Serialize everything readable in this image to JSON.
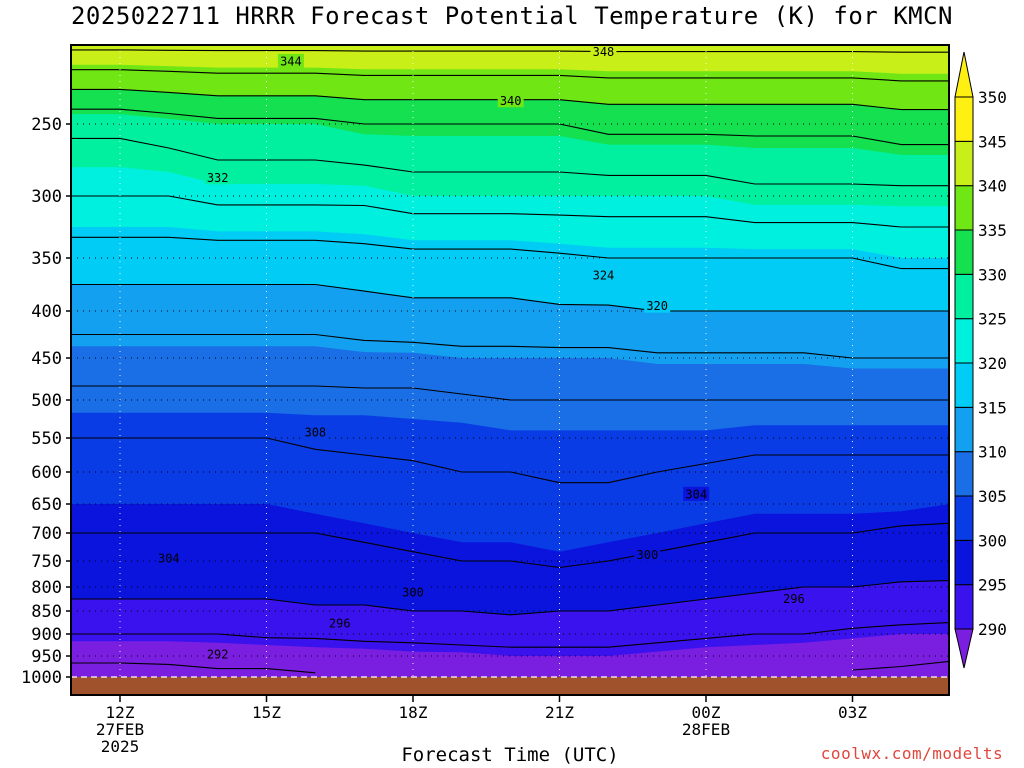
{
  "title": "2025022711 HRRR Forecast Potential Temperature (K) for KMCN",
  "credit": "coolwx.com/modelts",
  "chart_data": {
    "type": "area",
    "title": "2025022711 HRRR Forecast Potential Temperature (K) for KMCN",
    "xlabel": "Forecast Time (UTC)",
    "ylabel": "",
    "x_ticks": [
      {
        "hour": 12,
        "lines": [
          "12Z",
          "27FEB",
          "2025"
        ]
      },
      {
        "hour": 15,
        "lines": [
          "15Z"
        ]
      },
      {
        "hour": 18,
        "lines": [
          "18Z"
        ]
      },
      {
        "hour": 21,
        "lines": [
          "21Z"
        ]
      },
      {
        "hour": 24,
        "lines": [
          "00Z",
          "28FEB"
        ]
      },
      {
        "hour": 27,
        "lines": [
          "03Z"
        ]
      }
    ],
    "x_range_hours": [
      11,
      29
    ],
    "y_range_hPa": [
      1000,
      200
    ],
    "y_ticks": [
      250,
      300,
      350,
      400,
      450,
      500,
      550,
      600,
      650,
      700,
      750,
      800,
      850,
      900,
      950,
      1000
    ],
    "grid": "dotted",
    "colorbar": {
      "levels": [
        290,
        295,
        300,
        305,
        310,
        315,
        320,
        325,
        330,
        335,
        340,
        345,
        350
      ],
      "labels": [
        "290",
        "295",
        "300",
        "305",
        "310",
        "315",
        "320",
        "325",
        "330",
        "335",
        "340",
        "345",
        "350"
      ],
      "colors": [
        "#7a1ee0",
        "#3a12ee",
        "#0a14dc",
        "#0a3ce6",
        "#1a6ee6",
        "#14a0f0",
        "#00ccf5",
        "#00f0e0",
        "#00f0a0",
        "#14e050",
        "#70e614",
        "#c8f018",
        "#fff014"
      ]
    },
    "contour_interval_K": 4,
    "theta_profiles": {
      "hours": [
        11,
        12,
        13,
        14,
        15,
        16,
        17,
        18,
        19,
        20,
        21,
        22,
        23,
        24,
        25,
        26,
        27,
        28,
        29
      ],
      "note_levels_hPa": [
        1000,
        950,
        900,
        850,
        800,
        750,
        700,
        650,
        600,
        550,
        500,
        450,
        400,
        350,
        300,
        250,
        200
      ],
      "columns": [
        [
          290,
          293,
          296,
          299,
          301,
          303,
          304,
          305,
          307,
          308,
          311,
          314,
          318,
          322,
          328,
          333,
          349
        ],
        [
          290,
          293,
          296,
          299,
          301,
          303,
          304,
          305,
          307,
          308,
          311,
          314,
          318,
          322,
          328,
          333,
          349
        ],
        [
          290.5,
          293,
          296,
          299,
          301,
          303,
          304,
          305,
          307,
          308,
          311,
          314,
          318,
          322,
          328,
          334,
          349
        ],
        [
          291,
          293.5,
          296,
          299,
          301,
          303,
          304,
          305,
          307,
          308,
          311,
          314,
          318,
          322,
          329,
          335,
          349
        ],
        [
          291,
          293.5,
          296.5,
          299,
          301,
          303,
          304,
          305,
          307,
          308,
          311,
          314,
          318,
          322,
          329,
          335,
          349
        ],
        [
          291.5,
          294,
          296.5,
          299.5,
          301.5,
          303,
          304,
          305.5,
          307,
          308.5,
          311,
          314,
          318,
          322,
          329,
          335,
          349
        ],
        [
          292,
          294,
          297,
          299.5,
          301.5,
          303,
          304.5,
          306,
          307.5,
          308.5,
          311,
          314.5,
          318.5,
          322.5,
          329,
          336,
          349
        ],
        [
          292,
          294.5,
          297,
          300,
          302,
          303.5,
          305,
          306,
          307.5,
          309,
          311,
          314.5,
          319,
          323,
          330,
          336,
          349
        ],
        [
          292.5,
          294.5,
          297.5,
          300,
          302,
          304,
          305.5,
          306.5,
          308,
          309,
          311.5,
          315,
          319,
          323,
          330,
          336,
          349
        ],
        [
          293,
          295,
          297.5,
          300.5,
          302.5,
          304,
          305.5,
          307,
          308,
          309.5,
          312,
          315,
          319,
          323,
          330,
          336,
          349
        ],
        [
          293,
          295,
          297.5,
          300,
          302.5,
          304.5,
          306,
          307,
          308.5,
          309.5,
          312,
          315,
          319.5,
          323.5,
          330,
          336,
          349
        ],
        [
          293,
          295,
          297.5,
          300,
          302,
          304,
          305.5,
          307,
          308.5,
          309.5,
          312,
          315,
          319.5,
          324,
          330,
          337,
          349
        ],
        [
          293,
          294.5,
          297,
          299.5,
          301.5,
          303.5,
          305,
          306.5,
          308,
          309.5,
          312,
          315.5,
          320,
          324,
          330,
          337,
          349
        ],
        [
          292.5,
          294,
          296.5,
          299,
          301,
          303,
          304.5,
          306,
          307.5,
          309.5,
          312,
          315.5,
          320,
          324,
          330,
          337,
          349
        ],
        [
          292,
          294,
          296,
          298.5,
          300.5,
          302.5,
          304,
          305.5,
          307,
          309,
          312,
          315.5,
          320,
          324,
          331,
          337,
          349
        ],
        [
          292,
          293.5,
          296,
          298,
          300,
          302,
          304,
          305.5,
          307,
          309,
          312,
          315.5,
          320,
          324,
          331,
          337,
          349
        ],
        [
          291.5,
          293,
          295.5,
          297.5,
          300,
          302,
          304,
          305.5,
          307,
          309,
          312,
          316,
          320,
          324,
          331,
          337,
          349
        ],
        [
          291,
          293,
          295,
          297.5,
          299.5,
          302,
          303.5,
          305.5,
          307,
          309,
          312,
          316,
          320,
          325,
          331,
          338,
          349
        ],
        [
          290.5,
          292.5,
          295,
          297,
          299.5,
          301.5,
          303.5,
          305,
          307,
          309,
          312,
          316,
          320,
          325,
          331,
          338,
          349
        ]
      ]
    },
    "contour_labels": [
      {
        "value": "292",
        "hour": 14,
        "hPa": 946
      },
      {
        "value": "296",
        "hour": 16.5,
        "hPa": 876
      },
      {
        "value": "300",
        "hour": 18,
        "hPa": 810
      },
      {
        "value": "304",
        "hour": 13,
        "hPa": 745
      },
      {
        "value": "300",
        "hour": 22.8,
        "hPa": 738
      },
      {
        "value": "296",
        "hour": 25.8,
        "hPa": 824
      },
      {
        "value": "304",
        "hour": 23.8,
        "hPa": 634
      },
      {
        "value": "308",
        "hour": 16,
        "hPa": 542
      },
      {
        "value": "320",
        "hour": 23,
        "hPa": 395
      },
      {
        "value": "324",
        "hour": 21.9,
        "hPa": 366
      },
      {
        "value": "332",
        "hour": 14,
        "hPa": 287
      },
      {
        "value": "340",
        "hour": 20,
        "hPa": 235
      },
      {
        "value": "344",
        "hour": 15.5,
        "hPa": 210
      },
      {
        "value": "348",
        "hour": 21.9,
        "hPa": 204
      }
    ]
  }
}
